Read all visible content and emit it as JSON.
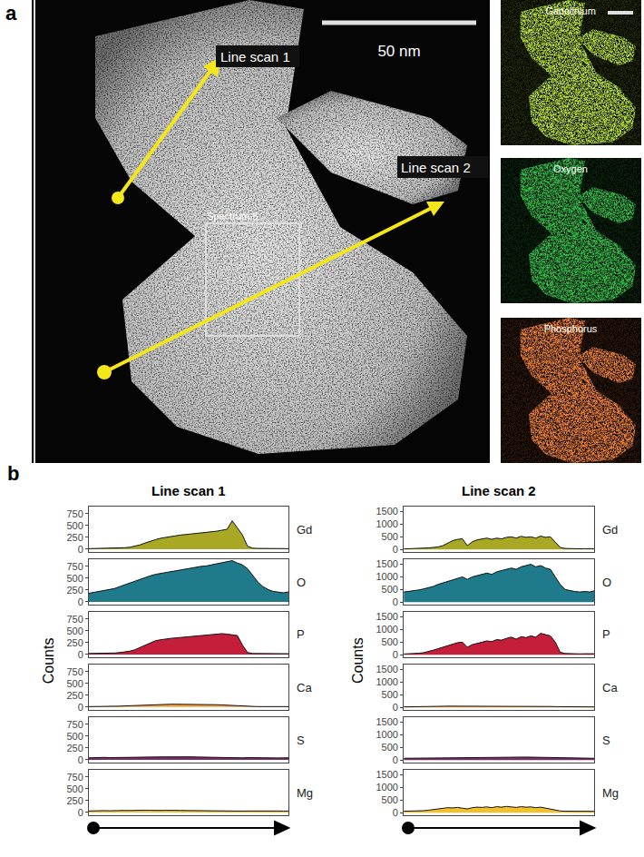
{
  "panel_a": {
    "label": "a",
    "scale_bar": "50 nm",
    "line_scans": [
      "Line scan 1",
      "Line scan 2"
    ],
    "box_label": "Spectrum 5",
    "maps": [
      {
        "name": "Gadolinium",
        "color": "#b5e03c"
      },
      {
        "name": "Oxygen",
        "color": "#35c04a"
      },
      {
        "name": "Phosphorus",
        "color": "#f0823a"
      }
    ]
  },
  "panel_b_label": "b",
  "chart_data": [
    {
      "type": "area",
      "title": "Line scan 1",
      "y_label": "Counts",
      "ylim": [
        -60,
        900
      ],
      "yticks": [
        0,
        250,
        500,
        750
      ],
      "grid": false,
      "tick_labels": "y",
      "series": [
        {
          "name": "Gd",
          "color": "#a8a824",
          "values": [
            10,
            12,
            15,
            15,
            18,
            20,
            25,
            30,
            40,
            60,
            90,
            130,
            170,
            200,
            230,
            250,
            270,
            280,
            300,
            310,
            320,
            330,
            340,
            350,
            360,
            380,
            400,
            420,
            600,
            450,
            300,
            60,
            20,
            15,
            12,
            10,
            10,
            12,
            10,
            10
          ]
        },
        {
          "name": "O",
          "color": "#1f7a8c",
          "values": [
            180,
            200,
            210,
            230,
            250,
            280,
            320,
            360,
            400,
            440,
            480,
            520,
            550,
            580,
            600,
            620,
            640,
            660,
            680,
            700,
            720,
            740,
            750,
            760,
            780,
            800,
            830,
            850,
            870,
            820,
            780,
            700,
            560,
            420,
            320,
            260,
            220,
            200,
            190,
            210
          ]
        },
        {
          "name": "P",
          "color": "#c41e3a",
          "values": [
            20,
            20,
            25,
            25,
            30,
            30,
            40,
            50,
            70,
            100,
            150,
            200,
            250,
            290,
            310,
            330,
            340,
            350,
            360,
            370,
            380,
            390,
            400,
            410,
            420,
            430,
            440,
            430,
            420,
            400,
            200,
            40,
            20,
            20,
            15,
            15,
            15,
            20,
            15,
            15
          ]
        },
        {
          "name": "Ca",
          "color": "#f4a340",
          "values": [
            10,
            10,
            12,
            12,
            15,
            15,
            20,
            25,
            30,
            35,
            40,
            45,
            50,
            50,
            55,
            55,
            60,
            60,
            60,
            60,
            55,
            55,
            60,
            60,
            55,
            50,
            45,
            40,
            30,
            20,
            15,
            10,
            10,
            10,
            10,
            10,
            10,
            10,
            10,
            10
          ]
        },
        {
          "name": "S",
          "color": "#7b2d6b",
          "values": [
            40,
            45,
            42,
            50,
            45,
            48,
            50,
            55,
            52,
            55,
            58,
            60,
            55,
            58,
            60,
            62,
            60,
            58,
            55,
            60,
            62,
            58,
            55,
            52,
            50,
            48,
            45,
            50,
            45,
            42,
            40,
            45,
            42,
            40,
            38,
            40,
            42,
            38,
            40,
            42
          ]
        },
        {
          "name": "Mg",
          "color": "#f2c12e",
          "values": [
            30,
            35,
            32,
            38,
            35,
            40,
            38,
            42,
            40,
            45,
            42,
            48,
            45,
            40,
            42,
            45,
            40,
            38,
            42,
            40,
            38,
            35,
            40,
            38,
            35,
            32,
            35,
            30,
            32,
            30,
            28,
            30,
            32,
            30,
            28,
            30,
            32,
            30,
            28,
            30
          ]
        }
      ]
    },
    {
      "type": "area",
      "title": "Line scan 2",
      "y_label": "Counts",
      "ylim": [
        -100,
        1700
      ],
      "yticks": [
        0,
        500,
        1000,
        1500
      ],
      "grid": false,
      "tick_labels": "y",
      "series": [
        {
          "name": "Gd",
          "color": "#a8a824",
          "values": [
            20,
            25,
            30,
            40,
            50,
            60,
            80,
            100,
            150,
            250,
            350,
            400,
            420,
            150,
            300,
            380,
            420,
            450,
            400,
            450,
            420,
            480,
            500,
            450,
            520,
            480,
            500,
            450,
            530,
            480,
            500,
            300,
            80,
            40,
            30,
            30,
            25,
            30,
            25,
            30
          ]
        },
        {
          "name": "O",
          "color": "#1f7a8c",
          "values": [
            400,
            420,
            450,
            480,
            520,
            560,
            620,
            700,
            760,
            820,
            900,
            950,
            1000,
            900,
            1000,
            1050,
            1100,
            1150,
            1100,
            1200,
            1250,
            1300,
            1350,
            1300,
            1400,
            1450,
            1500,
            1400,
            1450,
            1350,
            1300,
            1000,
            700,
            500,
            450,
            420,
            400,
            420,
            400,
            450
          ]
        },
        {
          "name": "P",
          "color": "#c41e3a",
          "values": [
            30,
            35,
            40,
            60,
            80,
            120,
            180,
            240,
            300,
            380,
            440,
            480,
            500,
            300,
            400,
            460,
            500,
            550,
            520,
            600,
            580,
            650,
            700,
            620,
            720,
            680,
            750,
            700,
            850,
            800,
            750,
            500,
            100,
            50,
            40,
            40,
            35,
            40,
            35,
            40
          ]
        },
        {
          "name": "Ca",
          "color": "#f4a340",
          "values": [
            20,
            20,
            25,
            25,
            30,
            30,
            35,
            40,
            45,
            50,
            50,
            55,
            55,
            50,
            55,
            60,
            60,
            60,
            55,
            60,
            60,
            55,
            60,
            55,
            60,
            55,
            50,
            50,
            45,
            40,
            35,
            30,
            25,
            20,
            20,
            20,
            20,
            20,
            20,
            20
          ]
        },
        {
          "name": "S",
          "color": "#7b2d6b",
          "values": [
            70,
            72,
            75,
            78,
            80,
            82,
            85,
            90,
            95,
            100,
            105,
            110,
            108,
            100,
            110,
            115,
            120,
            118,
            115,
            120,
            122,
            118,
            120,
            115,
            120,
            118,
            115,
            110,
            105,
            100,
            95,
            90,
            85,
            80,
            78,
            75,
            75,
            72,
            70,
            70
          ]
        },
        {
          "name": "Mg",
          "color": "#f2c12e",
          "values": [
            60,
            62,
            65,
            70,
            80,
            100,
            130,
            160,
            180,
            200,
            190,
            210,
            180,
            150,
            200,
            220,
            210,
            230,
            200,
            240,
            220,
            250,
            230,
            210,
            240,
            220,
            230,
            200,
            220,
            180,
            160,
            100,
            70,
            60,
            55,
            55,
            55,
            55,
            55,
            55
          ]
        }
      ]
    }
  ]
}
